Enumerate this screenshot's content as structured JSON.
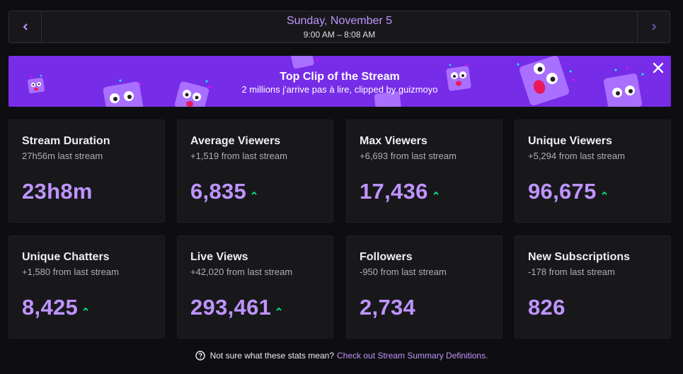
{
  "date_nav": {
    "title": "Sunday, November 5",
    "time_range": "9:00 AM – 8:08 AM",
    "prev_icon": "chevron-left-icon",
    "next_icon": "chevron-right-icon"
  },
  "top_clip": {
    "title": "Top Clip of the Stream",
    "subtitle": "2 millions j'arrive pas à lire, clipped by guizmoyo",
    "close_icon": "close-icon",
    "background": "#772ce8"
  },
  "stats": [
    {
      "title": "Stream Duration",
      "sub": "27h56m last stream",
      "value": "23h8m",
      "trend": "none"
    },
    {
      "title": "Average Viewers",
      "sub": "+1,519 from last stream",
      "value": "6,835",
      "trend": "up"
    },
    {
      "title": "Max Viewers",
      "sub": "+6,693 from last stream",
      "value": "17,436",
      "trend": "up"
    },
    {
      "title": "Unique Viewers",
      "sub": "+5,294 from last stream",
      "value": "96,675",
      "trend": "up"
    },
    {
      "title": "Unique Chatters",
      "sub": "+1,580 from last stream",
      "value": "8,425",
      "trend": "up"
    },
    {
      "title": "Live Views",
      "sub": "+42,020 from last stream",
      "value": "293,461",
      "trend": "up"
    },
    {
      "title": "Followers",
      "sub": "-950 from last stream",
      "value": "2,734",
      "trend": "none"
    },
    {
      "title": "New Subscriptions",
      "sub": "-178 from last stream",
      "value": "826",
      "trend": "none"
    }
  ],
  "footer": {
    "question": "Not sure what these stats mean?",
    "link": "Check out Stream Summary Definitions.",
    "icon": "help-circle-icon"
  },
  "colors": {
    "accent": "#bf94ff",
    "trend_up": "#00f593",
    "card_bg": "#18181b",
    "page_bg": "#0e0e10"
  }
}
